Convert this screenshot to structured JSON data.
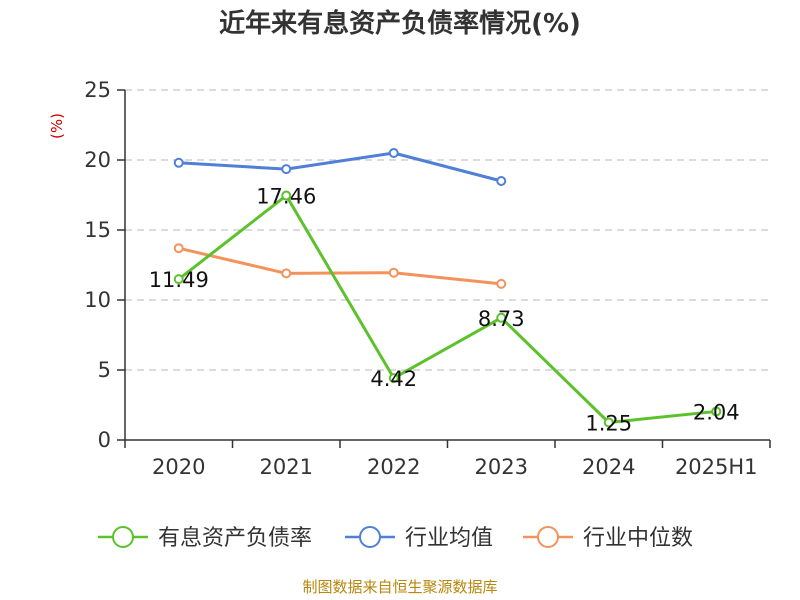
{
  "chart_data": {
    "type": "line",
    "title": "近年来有息资产负债率情况(%)",
    "y_unit_label": "(%)",
    "categories": [
      "2020",
      "2021",
      "2022",
      "2023",
      "2024",
      "2025H1"
    ],
    "ylim": [
      0,
      25
    ],
    "yticks": [
      0,
      5,
      10,
      15,
      20,
      25
    ],
    "grid": true,
    "legend_position": "bottom",
    "series": [
      {
        "name": "有息资产负债率",
        "color": "#5cc22c",
        "values": [
          11.49,
          17.46,
          4.42,
          8.73,
          1.25,
          2.04
        ],
        "show_labels": true
      },
      {
        "name": "行业均值",
        "color": "#4f7fd9",
        "values": [
          19.8,
          19.35,
          20.5,
          18.5,
          null,
          null
        ],
        "show_labels": false
      },
      {
        "name": "行业中位数",
        "color": "#f5925c",
        "values": [
          13.7,
          11.9,
          11.95,
          11.15,
          null,
          null
        ],
        "show_labels": false
      }
    ],
    "source": "制图数据来自恒生聚源数据库"
  }
}
